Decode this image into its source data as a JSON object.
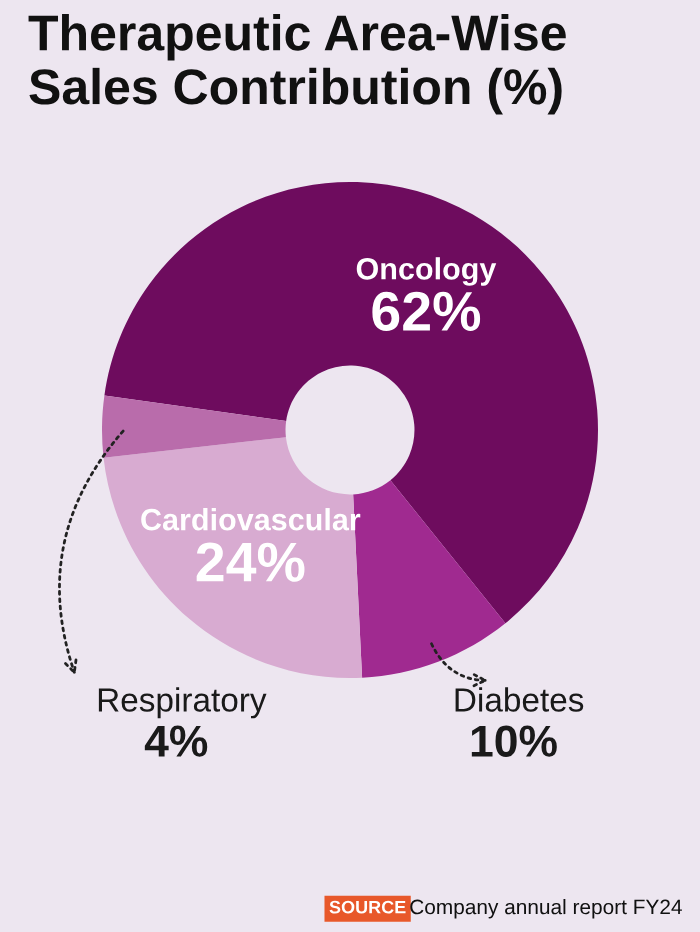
{
  "chart_data": {
    "type": "donut",
    "title": "Therapeutic Area-Wise Sales Contribution (%)",
    "categories": [
      "Oncology",
      "Diabetes",
      "Cardiovascular",
      "Respiratory"
    ],
    "values": [
      62,
      10,
      24,
      4
    ],
    "colors": [
      "#6e0c5e",
      "#a02a90",
      "#d8abd1",
      "#b96cab"
    ],
    "value_labels": [
      "62%",
      "10%",
      "24%",
      "4%"
    ],
    "annotations": [
      "SOURCE",
      "Company annual report FY24"
    ]
  }
}
